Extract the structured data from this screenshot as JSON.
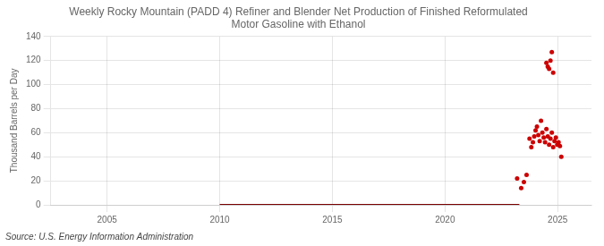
{
  "chart_data": {
    "type": "scatter",
    "title": "Weekly Rocky Mountain (PADD 4) Refiner and Blender Net Production of Finished Reformulated\nMotor Gasoline with Ethanol",
    "ylabel": "Thousand Barrels per Day",
    "annotation": "Source: U.S. Energy Information Administration",
    "xlim": [
      2002.5,
      2026.5
    ],
    "ylim": [
      0,
      140
    ],
    "xticks": [
      2005,
      2010,
      2015,
      2020,
      2025
    ],
    "yticks": [
      0,
      20,
      40,
      60,
      80,
      100,
      120,
      140
    ],
    "grid": true,
    "series": [
      {
        "type": "line",
        "color": "#7a0000",
        "x": [
          2010.0,
          2023.3
        ],
        "values": [
          0,
          0
        ]
      },
      {
        "type": "scatter",
        "color": "#cc0000",
        "x": [
          2023.2,
          2023.38,
          2023.5,
          2023.62,
          2023.75,
          2023.83,
          2023.9,
          2023.96,
          2024.02,
          2024.08,
          2024.14,
          2024.2,
          2024.26,
          2024.32,
          2024.38,
          2024.44,
          2024.5,
          2024.56,
          2024.62,
          2024.68,
          2024.74,
          2024.8,
          2024.86,
          2024.92,
          2024.98,
          2025.04,
          2025.1,
          2025.16,
          2024.5,
          2024.56,
          2024.62,
          2024.68,
          2024.74,
          2024.8
        ],
        "values": [
          22,
          14,
          19,
          25,
          55,
          48,
          52,
          57,
          62,
          65,
          58,
          53,
          70,
          60,
          56,
          52,
          63,
          57,
          50,
          55,
          60,
          48,
          53,
          56,
          50,
          52,
          49,
          40,
          118,
          115,
          113,
          120,
          127,
          110
        ]
      }
    ]
  }
}
